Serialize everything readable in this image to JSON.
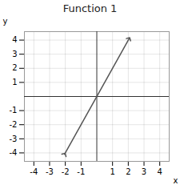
{
  "chart_data": {
    "type": "line",
    "title": "Function 1",
    "xlabel": "x",
    "ylabel": "y",
    "x": [
      -2.05,
      2.05
    ],
    "values": [
      -4.1,
      4.1
    ],
    "color": "#555555",
    "xlim": [
      -4.6,
      4.6
    ],
    "ylim": [
      -4.6,
      4.6
    ],
    "xticks": [
      -4,
      -3,
      -2,
      -1,
      1,
      2,
      3,
      4
    ],
    "yticks": [
      -4,
      -3,
      -2,
      -1,
      1,
      2,
      3,
      4
    ],
    "grid": true
  }
}
